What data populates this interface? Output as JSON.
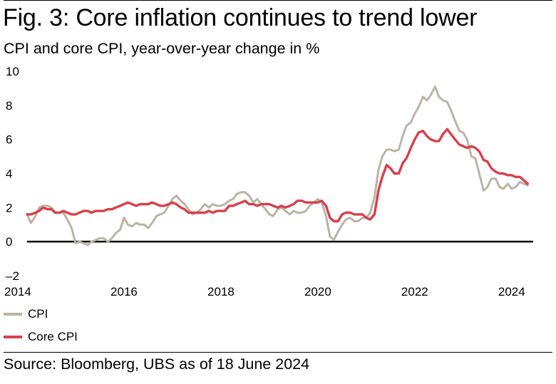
{
  "header": {
    "title": "Fig. 3: Core inflation continues to trend lower",
    "subtitle": "CPI and core CPI, year-over-year change in %"
  },
  "footer": {
    "source": "Source: Bloomberg, UBS as of 18 June 2024"
  },
  "colors": {
    "cpi": "#bbb4a4",
    "core": "#d93f4a",
    "zero_line": "#000000"
  },
  "chart_data": {
    "type": "line",
    "title": "Fig. 3: Core inflation continues to trend lower",
    "subtitle": "CPI and core CPI, year-over-year change in %",
    "xlabel": "",
    "ylabel": "",
    "xlim": [
      2014,
      2024.4
    ],
    "ylim": [
      -2,
      10
    ],
    "y_ticks": [
      10,
      8,
      6,
      4,
      2,
      0,
      -2
    ],
    "y_tick_labels": [
      "10",
      "8",
      "6",
      "4",
      "2",
      "0",
      "–2"
    ],
    "x_ticks": [
      2014,
      2016,
      2018,
      2020,
      2022,
      2024
    ],
    "x_tick_labels": [
      "2014",
      "2016",
      "2018",
      "2020",
      "2022",
      "2024"
    ],
    "grid": false,
    "legend": "bottom-left",
    "series": [
      {
        "name": "CPI",
        "color": "#bbb4a4",
        "points": [
          [
            2014.0,
            1.6
          ],
          [
            2014.08,
            1.1
          ],
          [
            2014.17,
            1.5
          ],
          [
            2014.25,
            2.0
          ],
          [
            2014.33,
            2.1
          ],
          [
            2014.42,
            2.1
          ],
          [
            2014.5,
            2.0
          ],
          [
            2014.58,
            1.7
          ],
          [
            2014.67,
            1.7
          ],
          [
            2014.75,
            1.7
          ],
          [
            2014.83,
            1.3
          ],
          [
            2014.92,
            0.8
          ],
          [
            2015.0,
            -0.1
          ],
          [
            2015.08,
            0.0
          ],
          [
            2015.17,
            -0.1
          ],
          [
            2015.25,
            -0.2
          ],
          [
            2015.33,
            0.0
          ],
          [
            2015.42,
            0.1
          ],
          [
            2015.5,
            0.2
          ],
          [
            2015.58,
            0.2
          ],
          [
            2015.67,
            0.0
          ],
          [
            2015.75,
            0.2
          ],
          [
            2015.83,
            0.5
          ],
          [
            2015.92,
            0.7
          ],
          [
            2016.0,
            1.4
          ],
          [
            2016.08,
            1.0
          ],
          [
            2016.17,
            0.9
          ],
          [
            2016.25,
            1.1
          ],
          [
            2016.33,
            1.0
          ],
          [
            2016.42,
            1.0
          ],
          [
            2016.5,
            0.8
          ],
          [
            2016.58,
            1.1
          ],
          [
            2016.67,
            1.5
          ],
          [
            2016.75,
            1.6
          ],
          [
            2016.83,
            1.7
          ],
          [
            2016.92,
            2.1
          ],
          [
            2017.0,
            2.5
          ],
          [
            2017.08,
            2.7
          ],
          [
            2017.17,
            2.4
          ],
          [
            2017.25,
            2.2
          ],
          [
            2017.33,
            1.9
          ],
          [
            2017.42,
            1.6
          ],
          [
            2017.5,
            1.7
          ],
          [
            2017.58,
            1.9
          ],
          [
            2017.67,
            2.2
          ],
          [
            2017.75,
            2.0
          ],
          [
            2017.83,
            2.2
          ],
          [
            2017.92,
            2.1
          ],
          [
            2018.0,
            2.1
          ],
          [
            2018.08,
            2.2
          ],
          [
            2018.17,
            2.4
          ],
          [
            2018.25,
            2.5
          ],
          [
            2018.33,
            2.8
          ],
          [
            2018.42,
            2.9
          ],
          [
            2018.5,
            2.9
          ],
          [
            2018.58,
            2.7
          ],
          [
            2018.67,
            2.3
          ],
          [
            2018.75,
            2.5
          ],
          [
            2018.83,
            2.2
          ],
          [
            2018.92,
            1.9
          ],
          [
            2019.0,
            1.6
          ],
          [
            2019.08,
            1.5
          ],
          [
            2019.17,
            1.9
          ],
          [
            2019.25,
            2.0
          ],
          [
            2019.33,
            1.8
          ],
          [
            2019.42,
            1.6
          ],
          [
            2019.5,
            1.8
          ],
          [
            2019.58,
            1.7
          ],
          [
            2019.67,
            1.7
          ],
          [
            2019.75,
            1.8
          ],
          [
            2019.83,
            2.1
          ],
          [
            2019.92,
            2.3
          ],
          [
            2020.0,
            2.5
          ],
          [
            2020.08,
            2.3
          ],
          [
            2020.17,
            1.5
          ],
          [
            2020.25,
            0.3
          ],
          [
            2020.33,
            0.1
          ],
          [
            2020.42,
            0.6
          ],
          [
            2020.5,
            1.0
          ],
          [
            2020.58,
            1.3
          ],
          [
            2020.67,
            1.4
          ],
          [
            2020.75,
            1.2
          ],
          [
            2020.83,
            1.2
          ],
          [
            2020.92,
            1.4
          ],
          [
            2021.0,
            1.4
          ],
          [
            2021.08,
            1.7
          ],
          [
            2021.17,
            2.6
          ],
          [
            2021.25,
            4.2
          ],
          [
            2021.33,
            5.0
          ],
          [
            2021.42,
            5.4
          ],
          [
            2021.5,
            5.4
          ],
          [
            2021.58,
            5.3
          ],
          [
            2021.67,
            5.4
          ],
          [
            2021.75,
            6.2
          ],
          [
            2021.83,
            6.8
          ],
          [
            2021.92,
            7.0
          ],
          [
            2022.0,
            7.5
          ],
          [
            2022.08,
            7.9
          ],
          [
            2022.17,
            8.5
          ],
          [
            2022.25,
            8.3
          ],
          [
            2022.33,
            8.6
          ],
          [
            2022.42,
            9.1
          ],
          [
            2022.5,
            8.5
          ],
          [
            2022.58,
            8.3
          ],
          [
            2022.67,
            8.2
          ],
          [
            2022.75,
            7.7
          ],
          [
            2022.83,
            7.1
          ],
          [
            2022.92,
            6.5
          ],
          [
            2023.0,
            6.4
          ],
          [
            2023.08,
            6.0
          ],
          [
            2023.17,
            5.0
          ],
          [
            2023.25,
            4.9
          ],
          [
            2023.33,
            4.0
          ],
          [
            2023.42,
            3.0
          ],
          [
            2023.5,
            3.2
          ],
          [
            2023.58,
            3.7
          ],
          [
            2023.67,
            3.7
          ],
          [
            2023.75,
            3.2
          ],
          [
            2023.83,
            3.1
          ],
          [
            2023.92,
            3.4
          ],
          [
            2024.0,
            3.1
          ],
          [
            2024.08,
            3.2
          ],
          [
            2024.17,
            3.5
          ],
          [
            2024.25,
            3.4
          ],
          [
            2024.33,
            3.3
          ]
        ]
      },
      {
        "name": "Core CPI",
        "color": "#d93f4a",
        "points": [
          [
            2014.0,
            1.6
          ],
          [
            2014.08,
            1.6
          ],
          [
            2014.17,
            1.7
          ],
          [
            2014.25,
            1.8
          ],
          [
            2014.33,
            2.0
          ],
          [
            2014.42,
            1.9
          ],
          [
            2014.5,
            1.9
          ],
          [
            2014.58,
            1.7
          ],
          [
            2014.67,
            1.7
          ],
          [
            2014.75,
            1.8
          ],
          [
            2014.83,
            1.7
          ],
          [
            2014.92,
            1.6
          ],
          [
            2015.0,
            1.6
          ],
          [
            2015.08,
            1.7
          ],
          [
            2015.17,
            1.8
          ],
          [
            2015.25,
            1.8
          ],
          [
            2015.33,
            1.7
          ],
          [
            2015.42,
            1.8
          ],
          [
            2015.5,
            1.8
          ],
          [
            2015.58,
            1.8
          ],
          [
            2015.67,
            1.9
          ],
          [
            2015.75,
            1.9
          ],
          [
            2015.83,
            2.0
          ],
          [
            2015.92,
            2.1
          ],
          [
            2016.0,
            2.2
          ],
          [
            2016.08,
            2.3
          ],
          [
            2016.17,
            2.2
          ],
          [
            2016.25,
            2.1
          ],
          [
            2016.33,
            2.2
          ],
          [
            2016.42,
            2.2
          ],
          [
            2016.5,
            2.2
          ],
          [
            2016.58,
            2.3
          ],
          [
            2016.67,
            2.2
          ],
          [
            2016.75,
            2.1
          ],
          [
            2016.83,
            2.1
          ],
          [
            2016.92,
            2.2
          ],
          [
            2017.0,
            2.3
          ],
          [
            2017.08,
            2.2
          ],
          [
            2017.17,
            2.0
          ],
          [
            2017.25,
            1.9
          ],
          [
            2017.33,
            1.7
          ],
          [
            2017.42,
            1.7
          ],
          [
            2017.5,
            1.7
          ],
          [
            2017.58,
            1.7
          ],
          [
            2017.67,
            1.7
          ],
          [
            2017.75,
            1.8
          ],
          [
            2017.83,
            1.7
          ],
          [
            2017.92,
            1.8
          ],
          [
            2018.0,
            1.8
          ],
          [
            2018.08,
            1.8
          ],
          [
            2018.17,
            2.1
          ],
          [
            2018.25,
            2.1
          ],
          [
            2018.33,
            2.2
          ],
          [
            2018.42,
            2.3
          ],
          [
            2018.5,
            2.4
          ],
          [
            2018.58,
            2.2
          ],
          [
            2018.67,
            2.2
          ],
          [
            2018.75,
            2.1
          ],
          [
            2018.83,
            2.2
          ],
          [
            2018.92,
            2.2
          ],
          [
            2019.0,
            2.2
          ],
          [
            2019.08,
            2.1
          ],
          [
            2019.17,
            2.0
          ],
          [
            2019.25,
            2.1
          ],
          [
            2019.33,
            2.0
          ],
          [
            2019.42,
            2.1
          ],
          [
            2019.5,
            2.2
          ],
          [
            2019.58,
            2.4
          ],
          [
            2019.67,
            2.4
          ],
          [
            2019.75,
            2.3
          ],
          [
            2019.83,
            2.3
          ],
          [
            2019.92,
            2.3
          ],
          [
            2020.0,
            2.3
          ],
          [
            2020.08,
            2.4
          ],
          [
            2020.17,
            2.1
          ],
          [
            2020.25,
            1.4
          ],
          [
            2020.33,
            1.2
          ],
          [
            2020.42,
            1.2
          ],
          [
            2020.5,
            1.6
          ],
          [
            2020.58,
            1.7
          ],
          [
            2020.67,
            1.7
          ],
          [
            2020.75,
            1.6
          ],
          [
            2020.83,
            1.6
          ],
          [
            2020.92,
            1.6
          ],
          [
            2021.0,
            1.4
          ],
          [
            2021.08,
            1.3
          ],
          [
            2021.17,
            1.6
          ],
          [
            2021.25,
            3.0
          ],
          [
            2021.33,
            3.8
          ],
          [
            2021.42,
            4.5
          ],
          [
            2021.5,
            4.3
          ],
          [
            2021.58,
            4.0
          ],
          [
            2021.67,
            4.0
          ],
          [
            2021.75,
            4.6
          ],
          [
            2021.83,
            4.9
          ],
          [
            2021.92,
            5.5
          ],
          [
            2022.0,
            6.0
          ],
          [
            2022.08,
            6.4
          ],
          [
            2022.17,
            6.5
          ],
          [
            2022.25,
            6.2
          ],
          [
            2022.33,
            6.0
          ],
          [
            2022.42,
            5.9
          ],
          [
            2022.5,
            5.9
          ],
          [
            2022.58,
            6.3
          ],
          [
            2022.67,
            6.6
          ],
          [
            2022.75,
            6.3
          ],
          [
            2022.83,
            6.0
          ],
          [
            2022.92,
            5.7
          ],
          [
            2023.0,
            5.6
          ],
          [
            2023.08,
            5.5
          ],
          [
            2023.17,
            5.6
          ],
          [
            2023.25,
            5.5
          ],
          [
            2023.33,
            5.3
          ],
          [
            2023.42,
            4.8
          ],
          [
            2023.5,
            4.7
          ],
          [
            2023.58,
            4.3
          ],
          [
            2023.67,
            4.1
          ],
          [
            2023.75,
            4.0
          ],
          [
            2023.83,
            4.0
          ],
          [
            2023.92,
            3.9
          ],
          [
            2024.0,
            3.9
          ],
          [
            2024.08,
            3.8
          ],
          [
            2024.17,
            3.8
          ],
          [
            2024.25,
            3.6
          ],
          [
            2024.33,
            3.4
          ]
        ]
      }
    ]
  }
}
